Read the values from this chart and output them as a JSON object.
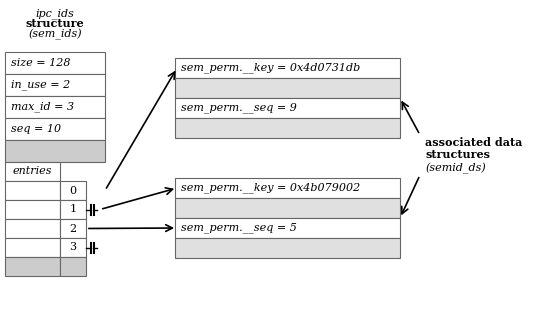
{
  "bg_color": "white",
  "box_edge_color": "#666666",
  "text_color": "black",
  "left_fields": [
    {
      "label": "size = 128",
      "bg": "white"
    },
    {
      "label": "in_use = 2",
      "bg": "white"
    },
    {
      "label": "max_id = 3",
      "bg": "white"
    },
    {
      "label": "seq = 10",
      "bg": "white"
    },
    {
      "label": "",
      "bg": "#cccccc"
    }
  ],
  "entries_label": "entries",
  "entry_nums": [
    "0",
    "1",
    "2",
    "3",
    ""
  ],
  "entry_bgs": [
    "white",
    "white",
    "white",
    "white",
    "#cccccc"
  ],
  "top_box_fields": [
    {
      "label": "sem_perm.__key = 0x4d0731db",
      "bg": "white"
    },
    {
      "label": "",
      "bg": "#e0e0e0"
    },
    {
      "label": "sem_perm.__seq = 9",
      "bg": "white"
    },
    {
      "label": "",
      "bg": "#e0e0e0"
    }
  ],
  "bot_box_fields": [
    {
      "label": "sem_perm.__key = 0x4b079002",
      "bg": "white"
    },
    {
      "label": "",
      "bg": "#e0e0e0"
    },
    {
      "label": "sem_perm.__seq = 5",
      "bg": "white"
    },
    {
      "label": "",
      "bg": "#e0e0e0"
    }
  ],
  "title_lines": [
    "ipc_ids",
    "structure",
    "(sem_ids)"
  ],
  "title_bold": [
    false,
    true,
    false
  ],
  "assoc_lines": [
    "associated data",
    "structures",
    "(semid_ds)"
  ],
  "assoc_bold": [
    true,
    true,
    false
  ]
}
